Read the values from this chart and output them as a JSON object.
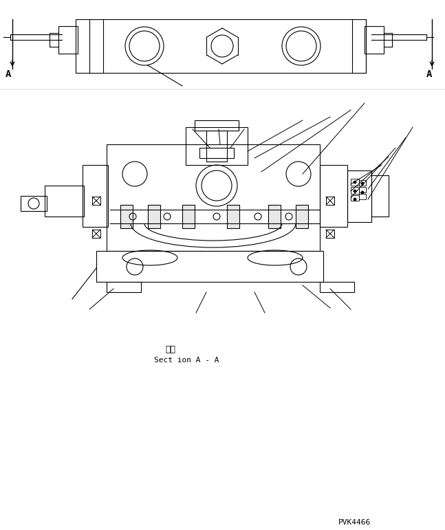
{
  "title": "PVK4466",
  "section_label_ja": "断面",
  "section_label_en": "Sect ion A - A",
  "bg_color": "#ffffff",
  "line_color": "#000000",
  "fig_width": 6.47,
  "fig_height": 7.71,
  "dpi": 100
}
